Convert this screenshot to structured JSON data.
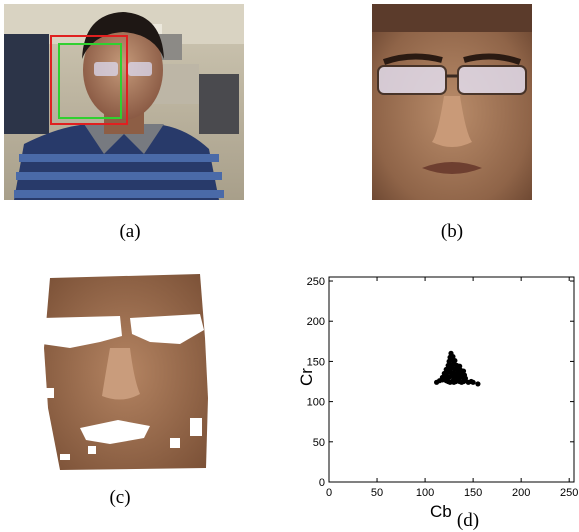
{
  "panels": {
    "a": {
      "caption": "(a)"
    },
    "b": {
      "caption": "(b)"
    },
    "c": {
      "caption": "(c)"
    },
    "d": {
      "caption": "(d)"
    }
  },
  "chart_data": {
    "type": "scatter",
    "xlabel": "Cb",
    "ylabel": "Cr",
    "xlim": [
      0,
      255
    ],
    "ylim": [
      0,
      255
    ],
    "xticks": [
      0,
      50,
      100,
      150,
      200,
      250
    ],
    "yticks": [
      0,
      50,
      100,
      150,
      200,
      250
    ],
    "grid": false,
    "x": [
      112,
      115,
      118,
      120,
      122,
      124,
      126,
      128,
      130,
      132,
      134,
      136,
      138,
      140,
      142,
      145,
      148,
      150,
      155,
      118,
      120,
      122,
      124,
      126,
      128,
      130,
      132,
      134,
      136,
      138,
      140,
      142,
      120,
      123,
      126,
      129,
      132,
      135,
      138,
      141,
      122,
      125,
      128,
      131,
      134,
      137,
      140,
      124,
      127,
      130,
      133,
      136,
      125,
      128,
      131,
      126,
      129,
      127
    ],
    "y": [
      124,
      126,
      127,
      128,
      126,
      125,
      124,
      125,
      124,
      125,
      126,
      125,
      124,
      125,
      126,
      124,
      125,
      124,
      122,
      130,
      131,
      132,
      130,
      131,
      132,
      130,
      131,
      132,
      130,
      131,
      130,
      129,
      135,
      136,
      137,
      136,
      135,
      136,
      134,
      133,
      140,
      141,
      142,
      141,
      140,
      139,
      138,
      145,
      146,
      147,
      145,
      144,
      150,
      152,
      151,
      155,
      156,
      160
    ],
    "marker_color": "#000000"
  },
  "colors": {
    "face_box": "#e02020",
    "skin_box": "#30d030"
  }
}
